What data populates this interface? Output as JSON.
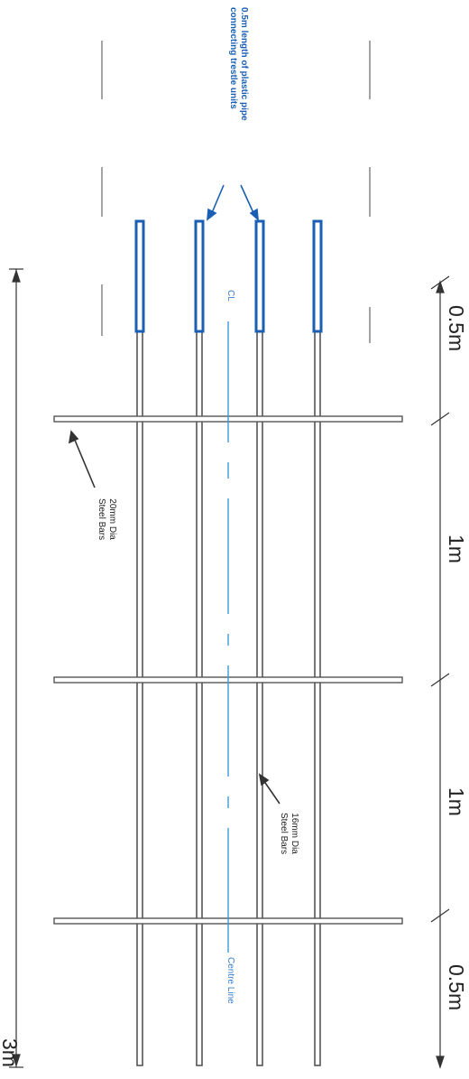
{
  "dimensions": {
    "segment_1": "0.5m",
    "segment_2": "1m",
    "segment_3": "1m",
    "segment_4": "0.5m",
    "total": "3m"
  },
  "annotations": {
    "pipe_note_line1": "0.5m length of plastic pipe",
    "pipe_note_line2": "connecting trestle units",
    "large_bars_line1": "20mm Dia",
    "large_bars_line2": "Steel Bars",
    "small_bars_line1": "16mm Dia",
    "small_bars_line2": "Steel Bars",
    "cl_mark": "CL",
    "centre_line": "Centre Line"
  },
  "colors": {
    "bar": "#555555",
    "pipe": "#1a5fb4",
    "centre_line": "#3a9ad9",
    "note": "#1a5fb4",
    "dimension": "#222222"
  }
}
